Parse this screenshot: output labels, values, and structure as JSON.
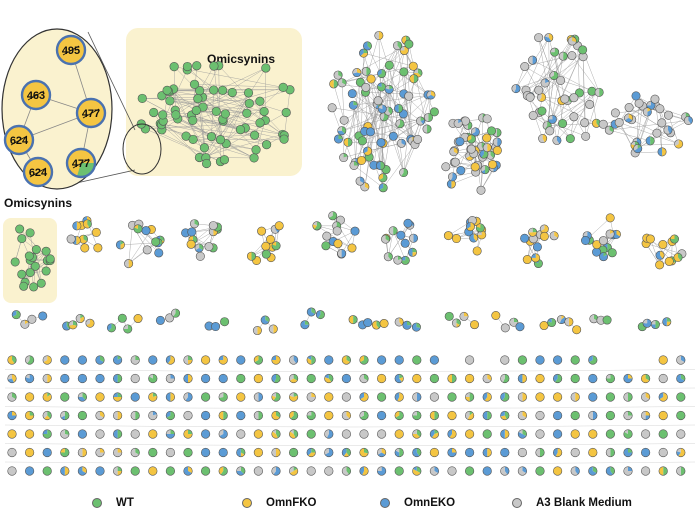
{
  "colors": {
    "wt": "#6cc070",
    "omnfko": "#f4c542",
    "omnEko": "#5b9bd5",
    "blank": "#c8c8c8",
    "highlight": "#faf2cf",
    "edge": "#9a9a9a",
    "zoom_node_border": "#4a72b0"
  },
  "highlight_labels": {
    "main": "Omicsynins",
    "side": "Omicsynins"
  },
  "zoom_nodes": [
    {
      "label": "495",
      "kind": "omnfko"
    },
    {
      "label": "463",
      "kind": "omnfko"
    },
    {
      "label": "477",
      "kind": "omnfko"
    },
    {
      "label": "624",
      "kind": "omnfko"
    },
    {
      "label": "624",
      "kind": "omnfko"
    },
    {
      "label": "477",
      "kind": "mixed"
    }
  ],
  "legend": [
    {
      "key": "wt",
      "label": "WT"
    },
    {
      "key": "omnfko",
      "label": "OmnFKO"
    },
    {
      "key": "omnEko",
      "label": "OmnEKO"
    },
    {
      "key": "blank",
      "label": "A3 Blank Medium"
    }
  ]
}
